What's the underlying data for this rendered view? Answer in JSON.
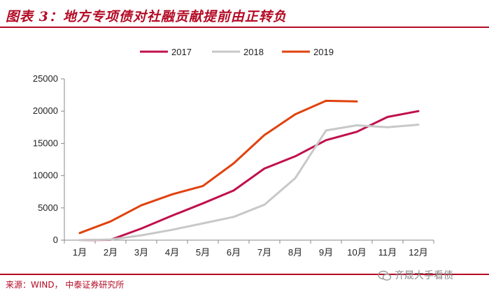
{
  "header": {
    "title": "图表 3：地方专项债对社融贡献提前由正转负"
  },
  "footer": {
    "source": "来源：WIND， 中泰证券研究所",
    "watermark": "齐晟大手看债"
  },
  "colors": {
    "accent": "#b40a24",
    "s2017": "#c0104a",
    "s2018": "#c8c8c8",
    "s2019": "#e0420e"
  },
  "chart_data": {
    "type": "line",
    "categories": [
      "1月",
      "2月",
      "3月",
      "4月",
      "5月",
      "6月",
      "7月",
      "8月",
      "9月",
      "10月",
      "11月",
      "12月"
    ],
    "series": [
      {
        "name": "2017",
        "values": [
          0,
          50,
          1800,
          3800,
          5700,
          7700,
          11100,
          13000,
          15500,
          16800,
          19100,
          20000
        ]
      },
      {
        "name": "2018",
        "values": [
          0,
          100,
          750,
          1600,
          2600,
          3600,
          5500,
          9600,
          17000,
          17800,
          17500,
          17900
        ]
      },
      {
        "name": "2019",
        "values": [
          1100,
          2900,
          5400,
          7100,
          8400,
          11900,
          16300,
          19500,
          21600,
          21500,
          null,
          null
        ]
      }
    ],
    "yticks": [
      "0",
      "5000",
      "10000",
      "15000",
      "20000",
      "25000"
    ],
    "ylim": [
      0,
      25000
    ],
    "legend_position": "top",
    "grid": false
  }
}
